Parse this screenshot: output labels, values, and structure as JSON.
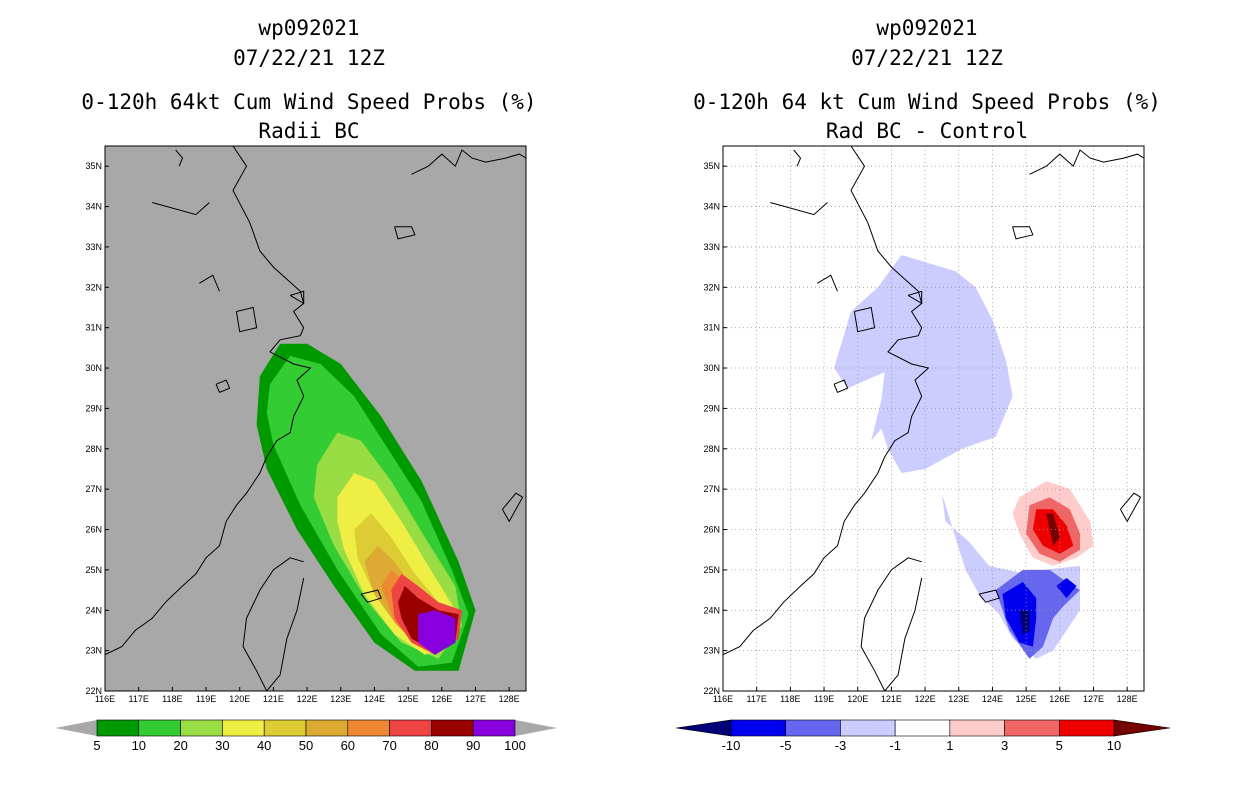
{
  "chart_data": [
    {
      "type": "heatmap",
      "storm_id": "wp092021",
      "datetime": "07/22/21 12Z",
      "title": "0-120h 64kt Cum Wind Speed Probs (%)",
      "subtitle": "Radii BC",
      "xlim": [
        116,
        128.5
      ],
      "ylim": [
        22,
        35.5
      ],
      "x_tick_labels": [
        "116E",
        "117E",
        "118E",
        "119E",
        "120E",
        "121E",
        "122E",
        "123E",
        "124E",
        "125E",
        "126E",
        "127E",
        "128E"
      ],
      "y_tick_labels": [
        "22N",
        "23N",
        "24N",
        "25N",
        "26N",
        "27N",
        "28N",
        "29N",
        "30N",
        "31N",
        "32N",
        "33N",
        "34N",
        "35N"
      ],
      "background": "#a8a8a8",
      "colorbar": {
        "levels": [
          "5",
          "10",
          "20",
          "30",
          "40",
          "50",
          "60",
          "70",
          "80",
          "90",
          "100"
        ],
        "colors": [
          "#009900",
          "#33cc33",
          "#99dd44",
          "#eeee44",
          "#ddcc33",
          "#ddaa33",
          "#ee8833",
          "#ee4444",
          "#990000",
          "#8800dd"
        ]
      },
      "contours": [
        {
          "level": "5-10",
          "color": "#009900",
          "polygon": [
            [
              120.6,
              29.8
            ],
            [
              121.2,
              30.6
            ],
            [
              122,
              30.6
            ],
            [
              123,
              30.1
            ],
            [
              124.2,
              28.8
            ],
            [
              125.4,
              27.2
            ],
            [
              126.5,
              25.2
            ],
            [
              127,
              24
            ],
            [
              126.5,
              22.5
            ],
            [
              125.2,
              22.5
            ],
            [
              124,
              23.2
            ],
            [
              122.8,
              24.6
            ],
            [
              121.7,
              26
            ],
            [
              120.8,
              27.5
            ],
            [
              120.5,
              28.6
            ]
          ]
        },
        {
          "level": "10-20",
          "color": "#33cc33",
          "polygon": [
            [
              120.9,
              29.6
            ],
            [
              121.5,
              30.3
            ],
            [
              122.4,
              30.1
            ],
            [
              123.4,
              29.3
            ],
            [
              124.4,
              28
            ],
            [
              125.4,
              26.7
            ],
            [
              126.3,
              25
            ],
            [
              126.8,
              23.9
            ],
            [
              126.3,
              22.7
            ],
            [
              125.3,
              22.6
            ],
            [
              124.2,
              23.4
            ],
            [
              122.9,
              25
            ],
            [
              121.8,
              26.6
            ],
            [
              121,
              28.1
            ],
            [
              120.8,
              28.9
            ]
          ]
        },
        {
          "level": "20-30",
          "color": "#99dd44",
          "polygon": [
            [
              122.3,
              27.6
            ],
            [
              122.9,
              28.4
            ],
            [
              123.6,
              28.2
            ],
            [
              124.5,
              27.2
            ],
            [
              125.5,
              25.8
            ],
            [
              126.4,
              24.6
            ],
            [
              126.6,
              23.6
            ],
            [
              125.9,
              22.8
            ],
            [
              124.8,
              23.2
            ],
            [
              123.8,
              24.2
            ],
            [
              122.8,
              25.6
            ],
            [
              122.2,
              26.8
            ]
          ]
        },
        {
          "level": "30-40",
          "color": "#eeee44",
          "polygon": [
            [
              122.9,
              26.8
            ],
            [
              123.4,
              27.4
            ],
            [
              124,
              27.2
            ],
            [
              124.8,
              26.2
            ],
            [
              125.6,
              25.1
            ],
            [
              126.4,
              24
            ],
            [
              126.2,
              23.1
            ],
            [
              125.5,
              22.9
            ],
            [
              124.6,
              23.4
            ],
            [
              123.7,
              24.4
            ],
            [
              123.1,
              25.5
            ],
            [
              122.9,
              26.2
            ]
          ]
        },
        {
          "level": "40-50",
          "color": "#ddcc33",
          "polygon": [
            [
              123.4,
              26
            ],
            [
              123.9,
              26.4
            ],
            [
              124.5,
              25.8
            ],
            [
              125.2,
              24.9
            ],
            [
              126,
              24.1
            ],
            [
              126.1,
              23.3
            ],
            [
              125.5,
              23
            ],
            [
              124.7,
              23.6
            ],
            [
              124,
              24.4
            ],
            [
              123.5,
              25.3
            ]
          ]
        },
        {
          "level": "50-60",
          "color": "#ddaa33",
          "polygon": [
            [
              123.7,
              25.2
            ],
            [
              124.1,
              25.6
            ],
            [
              124.6,
              25.2
            ],
            [
              125.2,
              24.5
            ],
            [
              126,
              23.9
            ],
            [
              126,
              23.2
            ],
            [
              125.4,
              23.1
            ],
            [
              124.6,
              23.7
            ],
            [
              124,
              24.4
            ]
          ]
        },
        {
          "level": "60-70",
          "color": "#ee8833",
          "polygon": [
            [
              124.2,
              24.6
            ],
            [
              124.5,
              25
            ],
            [
              124.9,
              24.7
            ],
            [
              125.4,
              24.2
            ],
            [
              126,
              23.8
            ],
            [
              125.9,
              23.2
            ],
            [
              125.3,
              23.1
            ],
            [
              124.6,
              23.7
            ]
          ]
        },
        {
          "level": "70-80",
          "color": "#ee4444",
          "polygon": [
            [
              124.5,
              24.5
            ],
            [
              124.8,
              24.9
            ],
            [
              125.3,
              24.6
            ],
            [
              125.9,
              24.2
            ],
            [
              126.6,
              24
            ],
            [
              126.5,
              23.3
            ],
            [
              125.8,
              22.9
            ],
            [
              125.1,
              23.2
            ],
            [
              124.6,
              23.8
            ]
          ]
        },
        {
          "level": "80-90",
          "color": "#990000",
          "polygon": [
            [
              124.7,
              24.2
            ],
            [
              124.9,
              24.6
            ],
            [
              125.3,
              24.3
            ],
            [
              125.9,
              24
            ],
            [
              126.5,
              23.9
            ],
            [
              126.4,
              23.2
            ],
            [
              125.7,
              23
            ],
            [
              125.1,
              23.3
            ],
            [
              124.8,
              23.8
            ]
          ]
        },
        {
          "level": "90-100",
          "color": "#8800dd",
          "polygon": [
            [
              125.3,
              23.9
            ],
            [
              125.8,
              24
            ],
            [
              126.4,
              23.8
            ],
            [
              126.4,
              23.2
            ],
            [
              125.8,
              22.9
            ],
            [
              125.3,
              23.2
            ]
          ]
        }
      ]
    },
    {
      "type": "heatmap",
      "storm_id": "wp092021",
      "datetime": "07/22/21 12Z",
      "title": "0-120h 64 kt Cum Wind Speed Probs (%)",
      "subtitle": "Rad BC - Control",
      "xlim": [
        116,
        128.5
      ],
      "ylim": [
        22,
        35.5
      ],
      "x_tick_labels": [
        "116E",
        "117E",
        "118E",
        "119E",
        "120E",
        "121E",
        "122E",
        "123E",
        "124E",
        "125E",
        "126E",
        "127E",
        "128E"
      ],
      "y_tick_labels": [
        "22N",
        "23N",
        "24N",
        "25N",
        "26N",
        "27N",
        "28N",
        "29N",
        "30N",
        "31N",
        "32N",
        "33N",
        "34N",
        "35N"
      ],
      "background": "#ffffff",
      "colorbar": {
        "levels": [
          "-10",
          "-5",
          "-3",
          "-1",
          "1",
          "3",
          "5",
          "10"
        ],
        "colors": [
          "#000077",
          "#0000ee",
          "#6666ee",
          "#ccccff",
          "#ffffff",
          "#ffcccc",
          "#ee6666",
          "#ee0000",
          "#770000"
        ]
      },
      "contours": [
        {
          "level": "-3 to -1",
          "color": "#ccccff",
          "polygon": [
            [
              119.3,
              30
            ],
            [
              119.8,
              31.4
            ],
            [
              120.6,
              32
            ],
            [
              121.3,
              32.8
            ],
            [
              122.1,
              32.6
            ],
            [
              122.9,
              32.4
            ],
            [
              123.5,
              32
            ],
            [
              124,
              31.2
            ],
            [
              124.4,
              30.2
            ],
            [
              124.6,
              29.3
            ],
            [
              124.1,
              28.3
            ],
            [
              123.1,
              28
            ],
            [
              122,
              27.5
            ],
            [
              121.3,
              27.4
            ],
            [
              120.9,
              28
            ],
            [
              120.7,
              28.5
            ],
            [
              120.4,
              28.2
            ],
            [
              120.7,
              29.2
            ],
            [
              120.8,
              29.9
            ],
            [
              119.7,
              29.5
            ]
          ]
        },
        {
          "level": "-3 to -1",
          "color": "#ccccff",
          "polygon": [
            [
              122.5,
              26.9
            ],
            [
              122.6,
              26.2
            ],
            [
              123.3,
              25.7
            ],
            [
              123.9,
              25.1
            ],
            [
              125,
              24.9
            ],
            [
              125.5,
              25
            ],
            [
              126.6,
              25.1
            ],
            [
              126.6,
              24
            ],
            [
              125.8,
              23
            ],
            [
              125.3,
              22.8
            ],
            [
              124.6,
              23.3
            ],
            [
              124.2,
              23.9
            ],
            [
              123.6,
              24.4
            ],
            [
              123.2,
              25
            ],
            [
              122.9,
              25.8
            ]
          ]
        },
        {
          "level": "-5 to -3",
          "color": "#6666ee",
          "polygon": [
            [
              124.1,
              24.5
            ],
            [
              124.9,
              25
            ],
            [
              125.7,
              25
            ],
            [
              126.2,
              24.7
            ],
            [
              126.6,
              24.5
            ],
            [
              126.1,
              24.1
            ],
            [
              125.8,
              23.8
            ],
            [
              125.5,
              23.1
            ],
            [
              125.1,
              22.8
            ],
            [
              124.5,
              23.5
            ]
          ]
        },
        {
          "level": "-10 to -5",
          "color": "#0000ee",
          "polygon": [
            [
              124.3,
              24.4
            ],
            [
              124.9,
              24.7
            ],
            [
              125.3,
              24.3
            ],
            [
              125.3,
              23.8
            ],
            [
              125.2,
              23.1
            ],
            [
              124.8,
              23.2
            ],
            [
              124.4,
              23.8
            ]
          ]
        },
        {
          "level": "-10 to -5",
          "color": "#0000ee",
          "polygon": [
            [
              125.9,
              24.6
            ],
            [
              126.2,
              24.8
            ],
            [
              126.5,
              24.6
            ],
            [
              126.2,
              24.3
            ]
          ]
        },
        {
          "level": "< -10",
          "color": "#000077",
          "polygon": [
            [
              124.8,
              24
            ],
            [
              125.1,
              24
            ],
            [
              125.1,
              23.5
            ],
            [
              124.9,
              23.4
            ]
          ]
        },
        {
          "level": "1 to 3",
          "color": "#ffcccc",
          "polygon": [
            [
              124.8,
              26.8
            ],
            [
              125.6,
              27.2
            ],
            [
              126.3,
              27
            ],
            [
              126.9,
              26.2
            ],
            [
              127,
              25.6
            ],
            [
              126.5,
              25.3
            ],
            [
              125.8,
              25.1
            ],
            [
              125.2,
              25.3
            ],
            [
              124.8,
              25.9
            ],
            [
              124.6,
              26.4
            ]
          ]
        },
        {
          "level": "3 to 5",
          "color": "#ee6666",
          "polygon": [
            [
              125.1,
              26.6
            ],
            [
              125.7,
              26.8
            ],
            [
              126.3,
              26.5
            ],
            [
              126.6,
              25.9
            ],
            [
              126.6,
              25.5
            ],
            [
              126,
              25.2
            ],
            [
              125.4,
              25.4
            ],
            [
              125,
              25.9
            ]
          ]
        },
        {
          "level": "5 to 10",
          "color": "#ee0000",
          "polygon": [
            [
              125.3,
              26.5
            ],
            [
              125.8,
              26.5
            ],
            [
              126.2,
              26.1
            ],
            [
              126.4,
              25.6
            ],
            [
              126,
              25.4
            ],
            [
              125.5,
              25.6
            ],
            [
              125.2,
              26
            ]
          ]
        },
        {
          "level": "> 10",
          "color": "#770000",
          "polygon": [
            [
              125.6,
              26.4
            ],
            [
              125.8,
              26.4
            ],
            [
              126,
              25.8
            ],
            [
              125.8,
              25.6
            ]
          ]
        }
      ]
    }
  ]
}
